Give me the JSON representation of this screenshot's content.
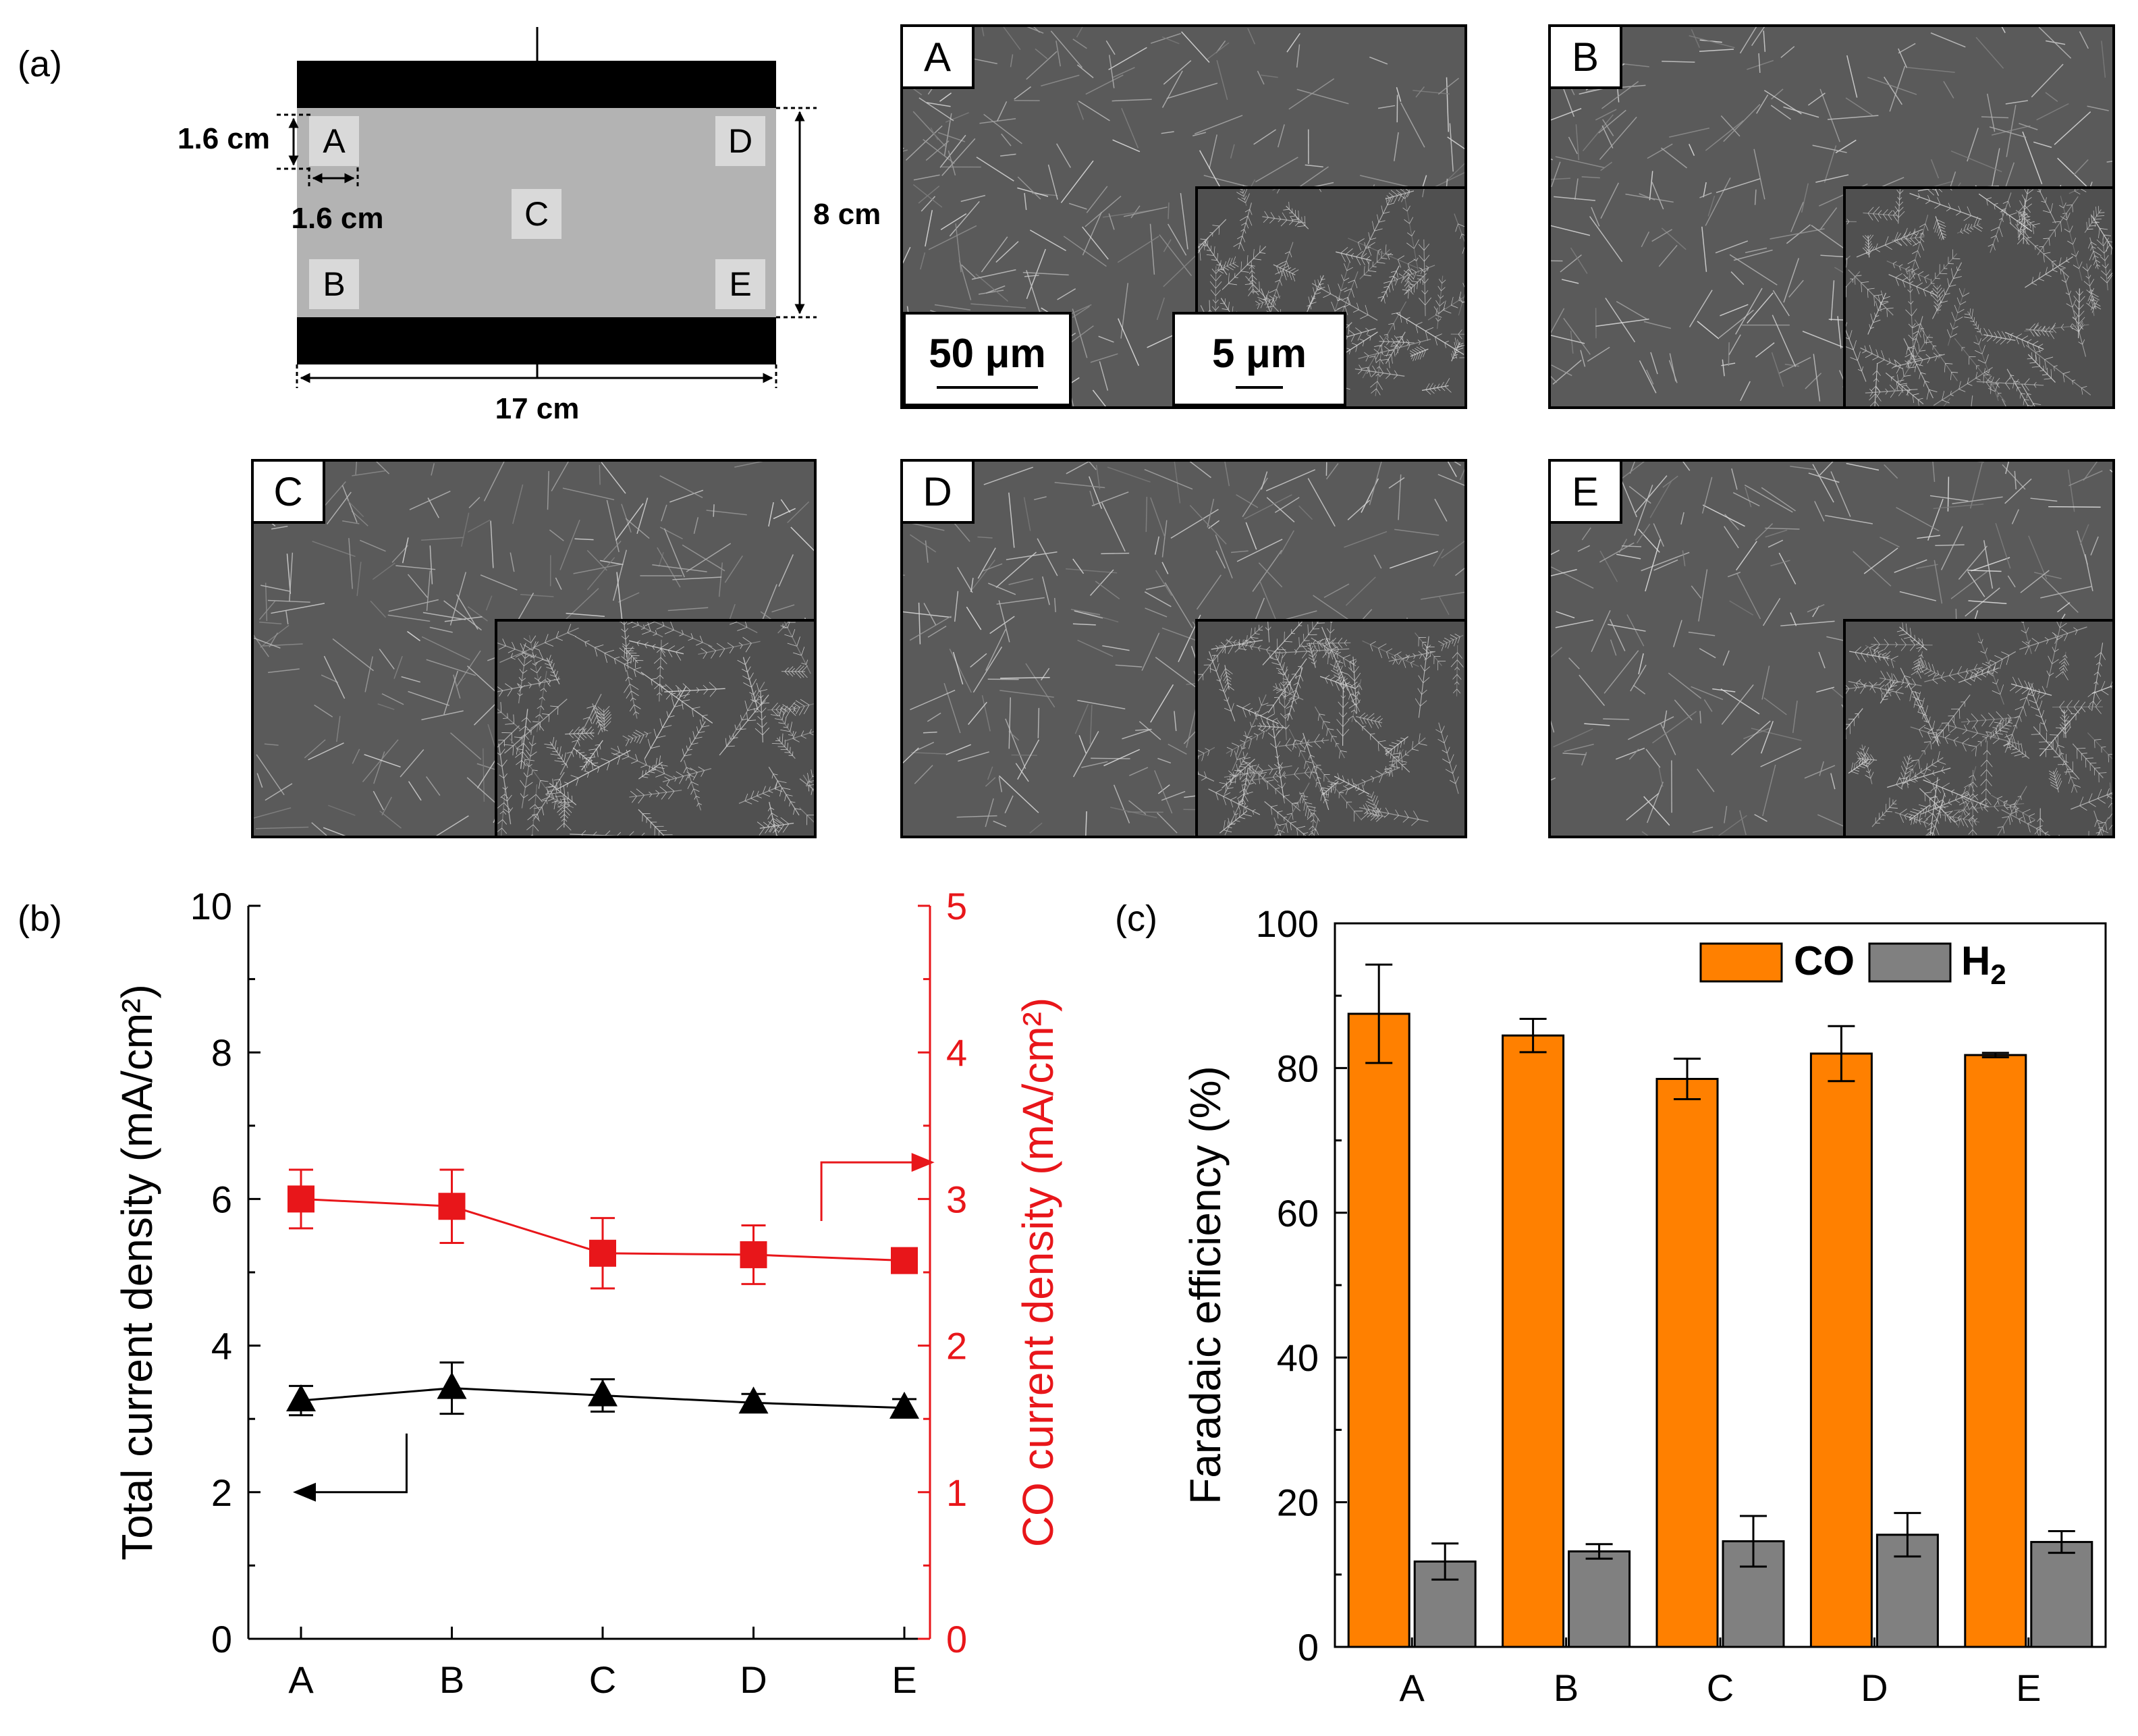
{
  "figure": {
    "panel_labels": {
      "a": "(a)",
      "b": "(b)",
      "c": "(c)"
    }
  },
  "schematic": {
    "points": [
      "A",
      "B",
      "C",
      "D",
      "E"
    ],
    "dim_height_point": "1.6 cm",
    "dim_width_point": "1.6 cm",
    "dim_total_height": "8 cm",
    "dim_total_width": "17 cm",
    "colors": {
      "electrode": "#000000",
      "sheet": "#b3b3b3",
      "patch": "#d9d9d9"
    }
  },
  "sem_images": {
    "tags": [
      "A",
      "B",
      "C",
      "D",
      "E"
    ],
    "scale_main": "50 μm",
    "scale_inset": "5 μm"
  },
  "chart_data": [
    {
      "type": "line",
      "panel": "(b)",
      "categories": [
        "A",
        "B",
        "C",
        "D",
        "E"
      ],
      "xlabel": "",
      "ylabel_left": "Total current density (mA/cm²)",
      "ylabel_right": "CO current density (mA/cm²)",
      "ylim_left": [
        0,
        10
      ],
      "ylim_right": [
        0,
        5
      ],
      "yticks_left": [
        "0",
        "2",
        "4",
        "6",
        "8",
        "10"
      ],
      "yticks_right": [
        "0",
        "1",
        "2",
        "3",
        "4",
        "5"
      ],
      "series": [
        {
          "name": "Total current density",
          "axis": "left",
          "marker": "triangle",
          "color": "#000000",
          "values": [
            3.25,
            3.42,
            3.32,
            3.22,
            3.15
          ],
          "errors": [
            0.2,
            0.35,
            0.22,
            0.12,
            0.12
          ]
        },
        {
          "name": "CO current density",
          "axis": "right",
          "marker": "square",
          "color": "#e8161a",
          "values": [
            3.0,
            2.95,
            2.63,
            2.62,
            2.58
          ],
          "errors": [
            0.2,
            0.25,
            0.24,
            0.2,
            0.08
          ]
        }
      ]
    },
    {
      "type": "bar",
      "panel": "(c)",
      "categories": [
        "A",
        "B",
        "C",
        "D",
        "E"
      ],
      "xlabel": "",
      "ylabel": "Faradaic efficiency (%)",
      "ylim": [
        0,
        100
      ],
      "yticks": [
        "0",
        "20",
        "40",
        "60",
        "80",
        "100"
      ],
      "legend": "top-right",
      "series": [
        {
          "name": "CO",
          "color": "#ff8000",
          "values": [
            87.5,
            84.5,
            78.5,
            82.0,
            81.8
          ],
          "errors": [
            6.8,
            2.3,
            2.8,
            3.8,
            0.3
          ]
        },
        {
          "name": "H2",
          "color": "#808080",
          "values": [
            11.8,
            13.2,
            14.6,
            15.5,
            14.5
          ],
          "errors": [
            2.5,
            1.0,
            3.5,
            3.0,
            1.5
          ]
        }
      ]
    }
  ]
}
